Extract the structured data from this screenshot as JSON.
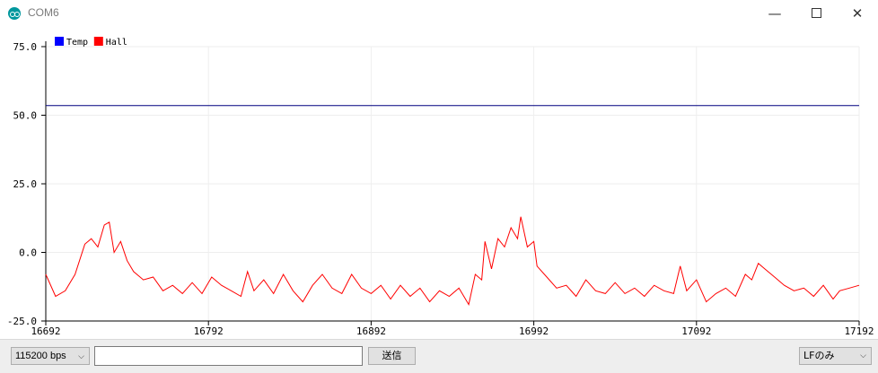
{
  "window": {
    "title": "COM6",
    "minimize_glyph": "—",
    "close_glyph": "✕"
  },
  "chart_data": {
    "type": "line",
    "ylim": [
      -25,
      75
    ],
    "yticks": [
      "75.0",
      "50.0",
      "25.0",
      "0.0",
      "-25.0"
    ],
    "ytick_values": [
      75,
      50,
      25,
      0,
      -25
    ],
    "xlim": [
      16692,
      17192
    ],
    "xticks": [
      "16692",
      "16792",
      "16892",
      "16992",
      "17092",
      "17192"
    ],
    "xtick_values": [
      16692,
      16792,
      16892,
      16992,
      17092,
      17192
    ],
    "grid": true,
    "legend_position": "top-left",
    "series": [
      {
        "name": "Temp",
        "color": "#0000ff",
        "line_color": "#000080",
        "points": [
          [
            16692,
            53.5
          ],
          [
            17192,
            53.5
          ]
        ]
      },
      {
        "name": "Hall",
        "color": "#ff0000",
        "line_color": "#ff0000",
        "points": [
          [
            16692,
            -8
          ],
          [
            16698,
            -16
          ],
          [
            16704,
            -14
          ],
          [
            16710,
            -8
          ],
          [
            16716,
            3
          ],
          [
            16720,
            5
          ],
          [
            16724,
            2
          ],
          [
            16728,
            10
          ],
          [
            16731,
            11
          ],
          [
            16734,
            0
          ],
          [
            16738,
            4
          ],
          [
            16742,
            -3
          ],
          [
            16746,
            -7
          ],
          [
            16752,
            -10
          ],
          [
            16758,
            -9
          ],
          [
            16764,
            -14
          ],
          [
            16770,
            -12
          ],
          [
            16776,
            -15
          ],
          [
            16782,
            -11
          ],
          [
            16788,
            -15
          ],
          [
            16794,
            -9
          ],
          [
            16800,
            -12
          ],
          [
            16806,
            -14
          ],
          [
            16812,
            -16
          ],
          [
            16816,
            -7
          ],
          [
            16820,
            -14
          ],
          [
            16826,
            -10
          ],
          [
            16832,
            -15
          ],
          [
            16838,
            -8
          ],
          [
            16844,
            -14
          ],
          [
            16850,
            -18
          ],
          [
            16856,
            -12
          ],
          [
            16862,
            -8
          ],
          [
            16868,
            -13
          ],
          [
            16874,
            -15
          ],
          [
            16880,
            -8
          ],
          [
            16886,
            -13
          ],
          [
            16892,
            -15
          ],
          [
            16898,
            -12
          ],
          [
            16904,
            -17
          ],
          [
            16910,
            -12
          ],
          [
            16916,
            -16
          ],
          [
            16922,
            -13
          ],
          [
            16928,
            -18
          ],
          [
            16934,
            -14
          ],
          [
            16940,
            -16
          ],
          [
            16946,
            -13
          ],
          [
            16952,
            -19
          ],
          [
            16956,
            -8
          ],
          [
            16960,
            -10
          ],
          [
            16962,
            4
          ],
          [
            16966,
            -6
          ],
          [
            16970,
            5
          ],
          [
            16974,
            2
          ],
          [
            16978,
            9
          ],
          [
            16982,
            5
          ],
          [
            16984,
            13
          ],
          [
            16988,
            2
          ],
          [
            16992,
            4
          ],
          [
            16994,
            -5
          ],
          [
            17000,
            -9
          ],
          [
            17006,
            -13
          ],
          [
            17012,
            -12
          ],
          [
            17018,
            -16
          ],
          [
            17024,
            -10
          ],
          [
            17030,
            -14
          ],
          [
            17036,
            -15
          ],
          [
            17042,
            -11
          ],
          [
            17048,
            -15
          ],
          [
            17054,
            -13
          ],
          [
            17060,
            -16
          ],
          [
            17066,
            -12
          ],
          [
            17072,
            -14
          ],
          [
            17078,
            -15
          ],
          [
            17082,
            -5
          ],
          [
            17086,
            -14
          ],
          [
            17092,
            -10
          ],
          [
            17098,
            -18
          ],
          [
            17104,
            -15
          ],
          [
            17110,
            -13
          ],
          [
            17116,
            -16
          ],
          [
            17122,
            -8
          ],
          [
            17126,
            -10
          ],
          [
            17130,
            -4
          ],
          [
            17134,
            -6
          ],
          [
            17140,
            -9
          ],
          [
            17146,
            -12
          ],
          [
            17152,
            -14
          ],
          [
            17158,
            -13
          ],
          [
            17164,
            -16
          ],
          [
            17170,
            -12
          ],
          [
            17176,
            -17
          ],
          [
            17180,
            -14
          ],
          [
            17186,
            -13
          ],
          [
            17192,
            -12
          ]
        ]
      }
    ]
  },
  "statusbar": {
    "baud": "115200 bps",
    "input_value": "",
    "send_label": "送信",
    "line_ending": "LFのみ"
  }
}
